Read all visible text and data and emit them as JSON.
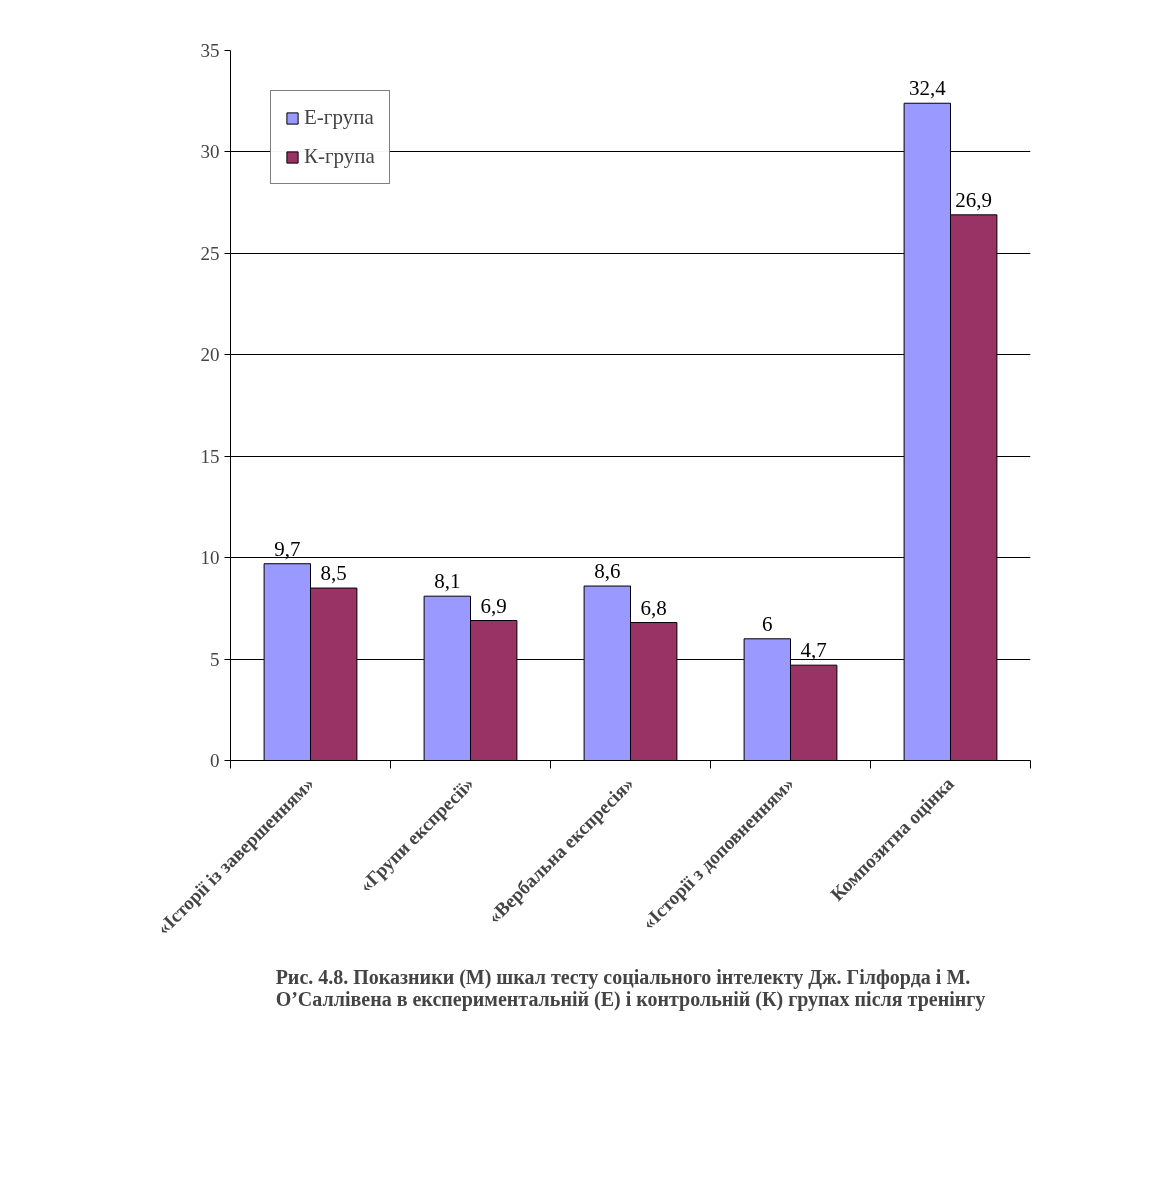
{
  "chart_data": {
    "type": "bar",
    "categories": [
      "«Історії із завершенням»",
      "«Групи експресії»",
      "«Вербальна експресія»",
      "«Історії з доповненням»",
      "Композитна оцінка"
    ],
    "series": [
      {
        "name": "Е-група",
        "color": "#9999ff",
        "values": [
          9.7,
          8.1,
          8.6,
          6,
          32.4
        ],
        "value_labels": [
          "9,7",
          "8,1",
          "8,6",
          "6",
          "32,4"
        ]
      },
      {
        "name": "К-група",
        "color": "#993366",
        "values": [
          8.5,
          6.9,
          6.8,
          4.7,
          26.9
        ],
        "value_labels": [
          "8,5",
          "6,9",
          "6,8",
          "4,7",
          "26,9"
        ]
      }
    ],
    "ylim": [
      0,
      35
    ],
    "yticks": [
      0,
      5,
      10,
      15,
      20,
      25,
      30,
      35
    ],
    "grid": "y",
    "legend": "top left",
    "annotations": [
      "Рис. 4.8. Показники (М) шкал тесту  соціального інтелекту Дж. Гілфорда і М.\nО’Саллівена в експериментальній (Е) і контрольній (К) групах після тренінгу"
    ]
  }
}
